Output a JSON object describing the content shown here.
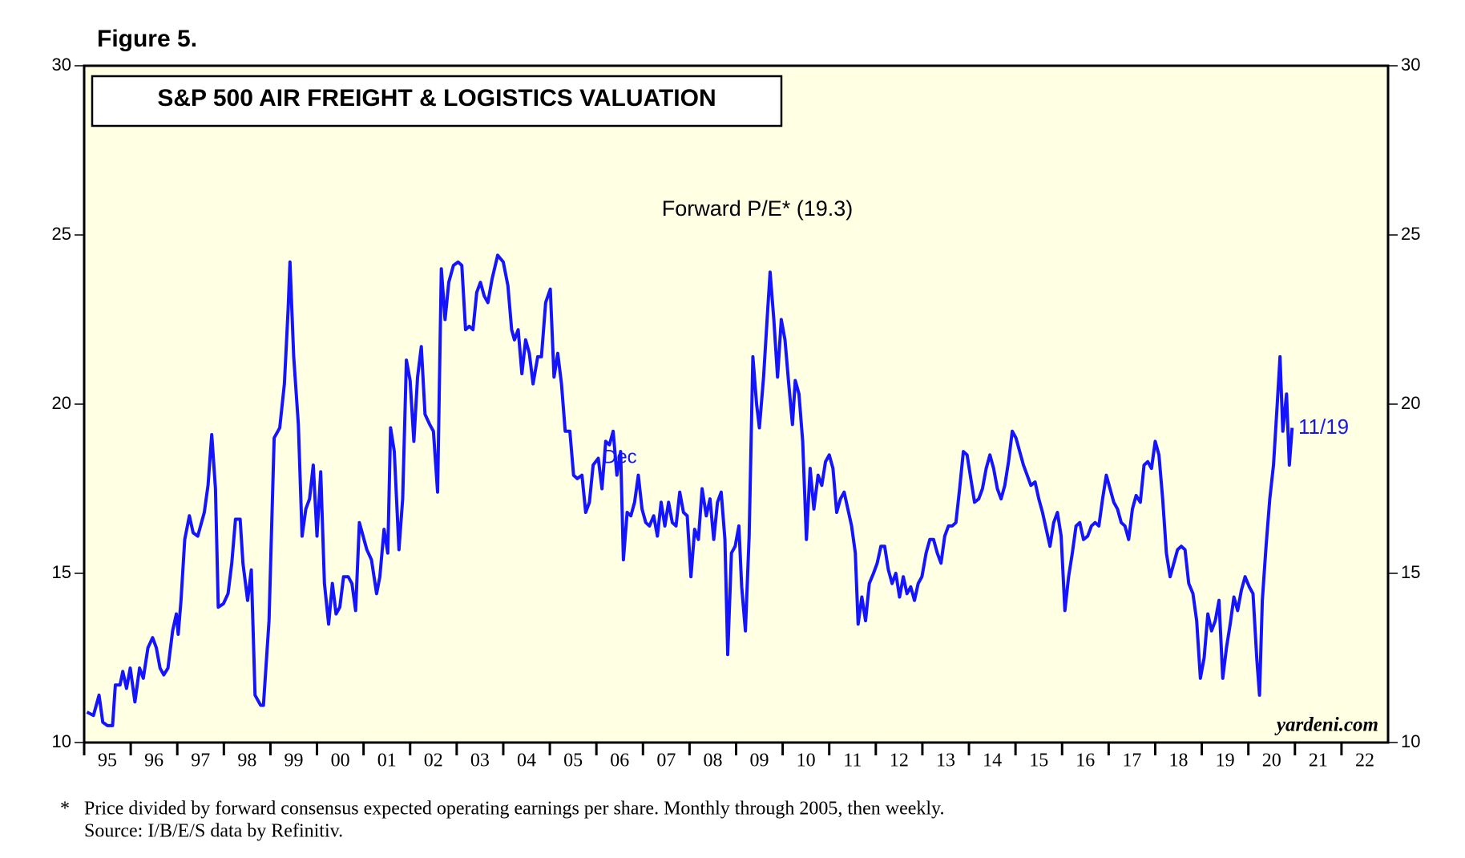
{
  "chart_data": {
    "type": "line",
    "figure_label": "Figure 5.",
    "title": "S&P 500 AIR FREIGHT & LOGISTICS VALUATION",
    "subtitle": "Forward P/E* (19.3)",
    "annotations": [
      "Dec",
      "11/19"
    ],
    "credit": "yardeni.com",
    "note_marker": "*",
    "footnotes": [
      "Price divided by forward consensus expected operating earnings per share. Monthly through 2005, then weekly.",
      "Source: I/B/E/S data by Refinitiv."
    ],
    "xlim": [
      1995,
      2023
    ],
    "xticks": [
      {
        "value": 1995,
        "label": "95"
      },
      {
        "value": 1996,
        "label": "96"
      },
      {
        "value": 1997,
        "label": "97"
      },
      {
        "value": 1998,
        "label": "98"
      },
      {
        "value": 1999,
        "label": "99"
      },
      {
        "value": 2000,
        "label": "00"
      },
      {
        "value": 2001,
        "label": "01"
      },
      {
        "value": 2002,
        "label": "02"
      },
      {
        "value": 2003,
        "label": "03"
      },
      {
        "value": 2004,
        "label": "04"
      },
      {
        "value": 2005,
        "label": "05"
      },
      {
        "value": 2006,
        "label": "06"
      },
      {
        "value": 2007,
        "label": "07"
      },
      {
        "value": 2008,
        "label": "08"
      },
      {
        "value": 2009,
        "label": "09"
      },
      {
        "value": 2010,
        "label": "10"
      },
      {
        "value": 2011,
        "label": "11"
      },
      {
        "value": 2012,
        "label": "12"
      },
      {
        "value": 2013,
        "label": "13"
      },
      {
        "value": 2014,
        "label": "14"
      },
      {
        "value": 2015,
        "label": "15"
      },
      {
        "value": 2016,
        "label": "16"
      },
      {
        "value": 2017,
        "label": "17"
      },
      {
        "value": 2018,
        "label": "18"
      },
      {
        "value": 2019,
        "label": "19"
      },
      {
        "value": 2020,
        "label": "20"
      },
      {
        "value": 2021,
        "label": "21"
      },
      {
        "value": 2022,
        "label": "22"
      }
    ],
    "ylim": [
      10,
      30
    ],
    "yticks": [
      10,
      15,
      20,
      25,
      30
    ],
    "y2lim": [
      10,
      30
    ],
    "y2ticks": [
      10,
      15,
      20,
      25,
      30
    ],
    "background": "#ffffe3",
    "x": [
      1995.06,
      1995.2,
      1995.32,
      1995.4,
      1995.5,
      1995.61,
      1995.67,
      1995.77,
      1995.83,
      1995.91,
      1995.99,
      1996.09,
      1996.19,
      1996.27,
      1996.37,
      1996.47,
      1996.55,
      1996.63,
      1996.71,
      1996.8,
      1996.9,
      1996.98,
      1997.02,
      1997.08,
      1997.16,
      1997.26,
      1997.34,
      1997.44,
      1997.58,
      1997.66,
      1997.74,
      1997.82,
      1997.88,
      1997.99,
      1998.09,
      1998.17,
      1998.25,
      1998.35,
      1998.41,
      1998.51,
      1998.59,
      1998.67,
      1998.79,
      1998.85,
      1998.97,
      1999.08,
      1999.2,
      1999.3,
      1999.38,
      1999.42,
      1999.5,
      1999.6,
      1999.68,
      1999.76,
      1999.84,
      1999.92,
      2000.0,
      2000.08,
      2000.16,
      2000.25,
      2000.33,
      2000.41,
      2000.49,
      2000.57,
      2000.67,
      2000.75,
      2000.83,
      2000.91,
      2000.99,
      2001.07,
      2001.17,
      2001.28,
      2001.35,
      2001.44,
      2001.52,
      2001.58,
      2001.66,
      2001.76,
      2001.84,
      2001.92,
      2002.0,
      2002.08,
      2002.16,
      2002.24,
      2002.32,
      2002.42,
      2002.5,
      2002.59,
      2002.67,
      2002.75,
      2002.83,
      2002.93,
      2003.03,
      2003.11,
      2003.19,
      2003.27,
      2003.35,
      2003.43,
      2003.51,
      2003.59,
      2003.67,
      2003.76,
      2003.88,
      2004.0,
      2004.1,
      2004.18,
      2004.24,
      2004.32,
      2004.4,
      2004.48,
      2004.56,
      2004.64,
      2004.74,
      2004.82,
      2004.91,
      2005.01,
      2005.09,
      2005.17,
      2005.25,
      2005.33,
      2005.43,
      2005.51,
      2005.59,
      2005.69,
      2005.77,
      2005.85,
      2005.93,
      2006.04,
      2006.12,
      2006.2,
      2006.28,
      2006.36,
      2006.44,
      2006.52,
      2006.58,
      2006.66,
      2006.74,
      2006.82,
      2006.9,
      2006.98,
      2007.06,
      2007.14,
      2007.23,
      2007.31,
      2007.39,
      2007.47,
      2007.55,
      2007.63,
      2007.71,
      2007.79,
      2007.87,
      2007.95,
      2008.03,
      2008.11,
      2008.19,
      2008.27,
      2008.36,
      2008.44,
      2008.52,
      2008.6,
      2008.68,
      2008.76,
      2008.82,
      2008.9,
      2008.98,
      2009.06,
      2009.12,
      2009.2,
      2009.28,
      2009.36,
      2009.44,
      2009.5,
      2009.59,
      2009.67,
      2009.73,
      2009.81,
      2009.89,
      2009.97,
      2010.05,
      2010.13,
      2010.21,
      2010.27,
      2010.35,
      2010.43,
      2010.51,
      2010.59,
      2010.67,
      2010.76,
      2010.84,
      2010.92,
      2011.0,
      2011.08,
      2011.16,
      2011.24,
      2011.32,
      2011.4,
      2011.48,
      2011.56,
      2011.62,
      2011.7,
      2011.78,
      2011.86,
      2011.95,
      2012.03,
      2012.11,
      2012.19,
      2012.27,
      2012.35,
      2012.43,
      2012.51,
      2012.59,
      2012.67,
      2012.75,
      2012.83,
      2012.91,
      2012.99,
      2013.08,
      2013.16,
      2013.24,
      2013.32,
      2013.4,
      2013.48,
      2013.56,
      2013.64,
      2013.72,
      2013.8,
      2013.88,
      2013.96,
      2014.04,
      2014.12,
      2014.21,
      2014.29,
      2014.37,
      2014.45,
      2014.53,
      2014.61,
      2014.69,
      2014.77,
      2014.85,
      2014.93,
      2015.01,
      2015.09,
      2015.17,
      2015.25,
      2015.33,
      2015.42,
      2015.5,
      2015.58,
      2015.66,
      2015.74,
      2015.82,
      2015.9,
      2015.98,
      2016.06,
      2016.14,
      2016.22,
      2016.3,
      2016.38,
      2016.46,
      2016.55,
      2016.63,
      2016.71,
      2016.79,
      2016.87,
      2016.95,
      2017.03,
      2017.11,
      2017.19,
      2017.27,
      2017.35,
      2017.43,
      2017.51,
      2017.59,
      2017.68,
      2017.76,
      2017.84,
      2017.92,
      2018.0,
      2018.08,
      2018.16,
      2018.24,
      2018.32,
      2018.4,
      2018.48,
      2018.56,
      2018.64,
      2018.72,
      2018.81,
      2018.89,
      2018.97,
      2019.05,
      2019.13,
      2019.21,
      2019.29,
      2019.37,
      2019.45,
      2019.53,
      2019.61,
      2019.69,
      2019.77,
      2019.85,
      2019.93,
      2020.02,
      2020.1,
      2020.18,
      2020.24,
      2020.3,
      2020.38,
      2020.46,
      2020.54,
      2020.62,
      2020.68,
      2020.74,
      2020.82,
      2020.88,
      2020.94
    ],
    "series": [
      {
        "color": "#1414ff",
        "values": [
          10.9,
          10.8,
          11.4,
          10.6,
          10.5,
          10.5,
          11.7,
          11.7,
          12.1,
          11.6,
          12.2,
          11.2,
          12.2,
          11.9,
          12.8,
          13.1,
          12.8,
          12.2,
          12.0,
          12.2,
          13.3,
          13.8,
          13.2,
          14.2,
          16.0,
          16.7,
          16.2,
          16.1,
          16.8,
          17.6,
          19.1,
          17.5,
          14.0,
          14.1,
          14.4,
          15.3,
          16.6,
          16.6,
          15.3,
          14.2,
          15.1,
          11.4,
          11.1,
          11.1,
          13.6,
          19.0,
          19.3,
          20.6,
          22.8,
          24.2,
          21.4,
          19.4,
          16.1,
          16.9,
          17.2,
          18.2,
          16.1,
          18.0,
          14.7,
          13.5,
          14.7,
          13.8,
          14.0,
          14.9,
          14.9,
          14.7,
          13.9,
          16.5,
          16.1,
          15.7,
          15.4,
          14.4,
          14.9,
          16.3,
          15.6,
          19.3,
          18.6,
          15.7,
          17.2,
          21.3,
          20.7,
          18.9,
          20.8,
          21.7,
          19.7,
          19.4,
          19.2,
          17.4,
          24.0,
          22.5,
          23.6,
          24.1,
          24.2,
          24.1,
          22.2,
          22.3,
          22.2,
          23.3,
          23.6,
          23.2,
          23.0,
          23.7,
          24.4,
          24.2,
          23.5,
          22.2,
          21.9,
          22.2,
          20.9,
          21.9,
          21.5,
          20.6,
          21.4,
          21.4,
          23.0,
          23.4,
          20.8,
          21.5,
          20.6,
          19.2,
          19.2,
          17.9,
          17.8,
          17.9,
          16.8,
          17.1,
          18.2,
          18.4,
          17.5,
          18.9,
          18.8,
          19.2,
          17.9,
          18.6,
          15.4,
          16.8,
          16.7,
          17.1,
          17.9,
          16.9,
          16.5,
          16.4,
          16.7,
          16.1,
          17.1,
          16.4,
          17.1,
          16.5,
          16.4,
          17.4,
          16.8,
          16.7,
          14.9,
          16.3,
          16.0,
          17.5,
          16.7,
          17.2,
          16.0,
          17.1,
          17.4,
          16.0,
          12.6,
          15.6,
          15.8,
          16.4,
          14.6,
          13.3,
          16.1,
          21.4,
          20.0,
          19.3,
          20.8,
          22.6,
          23.9,
          22.5,
          20.8,
          22.5,
          21.9,
          20.6,
          19.4,
          20.7,
          20.3,
          18.9,
          16.0,
          18.1,
          16.9,
          17.9,
          17.6,
          18.3,
          18.5,
          18.1,
          16.8,
          17.2,
          17.4,
          16.9,
          16.4,
          15.6,
          13.5,
          14.3,
          13.6,
          14.7,
          15.0,
          15.3,
          15.8,
          15.8,
          15.1,
          14.7,
          15.0,
          14.3,
          14.9,
          14.4,
          14.6,
          14.2,
          14.7,
          14.9,
          15.6,
          16.0,
          16.0,
          15.6,
          15.3,
          16.1,
          16.4,
          16.4,
          16.5,
          17.5,
          18.6,
          18.5,
          17.8,
          17.1,
          17.2,
          17.5,
          18.1,
          18.5,
          18.1,
          17.5,
          17.2,
          17.6,
          18.3,
          19.2,
          19.0,
          18.6,
          18.2,
          17.9,
          17.6,
          17.7,
          17.2,
          16.8,
          16.3,
          15.8,
          16.5,
          16.8,
          16.1,
          13.9,
          14.9,
          15.6,
          16.4,
          16.5,
          16.0,
          16.1,
          16.4,
          16.5,
          16.4,
          17.2,
          17.9,
          17.5,
          17.1,
          16.9,
          16.5,
          16.4,
          16.0,
          16.9,
          17.3,
          17.1,
          18.2,
          18.3,
          18.1,
          18.9,
          18.5,
          17.2,
          15.6,
          14.9,
          15.3,
          15.7,
          15.8,
          15.7,
          14.7,
          14.4,
          13.6,
          11.9,
          12.5,
          13.8,
          13.3,
          13.6,
          14.2,
          11.9,
          12.8,
          13.5,
          14.3,
          13.9,
          14.5,
          14.9,
          14.6,
          14.4,
          12.5,
          11.4,
          14.2,
          15.8,
          17.2,
          18.2,
          20.0,
          21.4,
          19.2,
          20.3,
          18.2,
          19.3
        ]
      }
    ]
  }
}
